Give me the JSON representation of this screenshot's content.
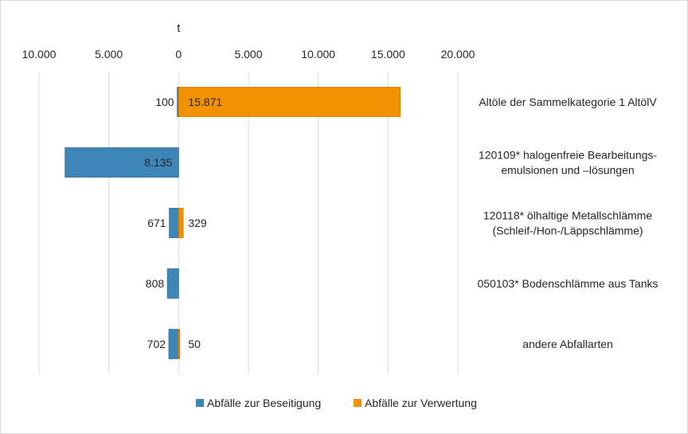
{
  "chart_data": {
    "type": "bar",
    "orientation": "horizontal",
    "diverging": true,
    "xlabel": "t",
    "xlim": [
      -10000,
      20000
    ],
    "x_ticks": [
      -10000,
      -5000,
      0,
      5000,
      10000,
      15000,
      20000
    ],
    "x_tick_labels": [
      "10.000",
      "5.000",
      "0",
      "5.000",
      "10.000",
      "15.000",
      "20.000"
    ],
    "grid": true,
    "legend_position": "bottom",
    "categories": [
      [
        "Altöle der Sammelkategorie 1 AltölV"
      ],
      [
        "120109* halogenfreie Bearbeitungs-",
        "emulsionen und –lösungen"
      ],
      [
        "120118* ölhaltige Metallschlämme",
        "(Schleif-/Hon-/Läppschlämme)"
      ],
      [
        "050103* Bodenschlämme aus Tanks"
      ],
      [
        "andere Abfallarten"
      ]
    ],
    "series": [
      {
        "name": "Abfälle zur Beseitigung",
        "color": "#3f86b8",
        "direction": "left",
        "values": [
          100,
          8135,
          671,
          808,
          702
        ],
        "labels": [
          "100",
          "8.135",
          "671",
          "808",
          "702"
        ]
      },
      {
        "name": "Abfälle zur Verwertung",
        "color": "#f39200",
        "direction": "right",
        "values": [
          15871,
          0,
          329,
          0,
          50
        ],
        "labels": [
          "15.871",
          "",
          "329",
          "",
          "50"
        ]
      }
    ]
  }
}
